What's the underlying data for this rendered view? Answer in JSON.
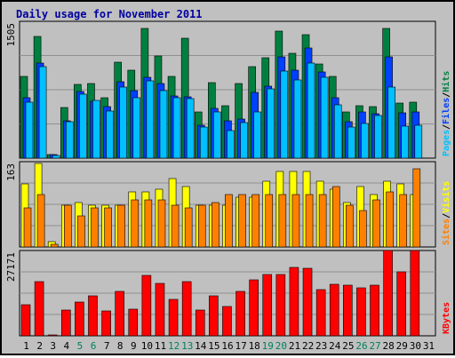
{
  "title": "Daily usage for November 2011",
  "colors": {
    "background": "#c0c0c0",
    "hits": "#008040",
    "files": "#0040ff",
    "pages": "#00c0ff",
    "visits": "#ffff00",
    "sites": "#ff8000",
    "kbytes": "#ff0000",
    "weekend_label": "#00805c",
    "weekday_label": "#000000"
  },
  "chart_data": [
    {
      "type": "bar",
      "panel": "top",
      "max_label": "1505",
      "ylim": [
        0,
        1505
      ],
      "categories": [
        "1",
        "2",
        "3",
        "4",
        "5",
        "6",
        "7",
        "8",
        "9",
        "10",
        "11",
        "12",
        "13",
        "14",
        "15",
        "16",
        "17",
        "18",
        "19",
        "20",
        "21",
        "22",
        "23",
        "24",
        "25",
        "26",
        "27",
        "28",
        "29",
        "30",
        "31"
      ],
      "series": [
        {
          "name": "Hits",
          "values": [
            900,
            1335,
            40,
            560,
            815,
            825,
            660,
            1060,
            970,
            1425,
            1120,
            900,
            1315,
            510,
            835,
            580,
            820,
            1005,
            1105,
            1400,
            1155,
            1360,
            1040,
            895,
            505,
            575,
            565,
            1425,
            610,
            615,
            0
          ]
        },
        {
          "name": "Files",
          "values": [
            660,
            1050,
            40,
            410,
            730,
            630,
            570,
            840,
            740,
            890,
            820,
            685,
            670,
            360,
            550,
            410,
            430,
            720,
            795,
            1110,
            970,
            1210,
            945,
            660,
            405,
            510,
            490,
            1115,
            500,
            505,
            0
          ]
        },
        {
          "name": "Pages",
          "values": [
            615,
            1005,
            30,
            400,
            705,
            640,
            520,
            780,
            660,
            855,
            745,
            660,
            650,
            345,
            510,
            305,
            390,
            510,
            760,
            955,
            860,
            1050,
            890,
            590,
            340,
            380,
            465,
            780,
            355,
            360,
            0
          ]
        }
      ],
      "legend": [
        "Hits",
        "Files",
        "Pages"
      ]
    },
    {
      "type": "bar",
      "panel": "middle",
      "max_label": "163",
      "ylim": [
        0,
        163
      ],
      "categories": [
        "1",
        "2",
        "3",
        "4",
        "5",
        "6",
        "7",
        "8",
        "9",
        "10",
        "11",
        "12",
        "13",
        "14",
        "15",
        "16",
        "17",
        "18",
        "19",
        "20",
        "21",
        "22",
        "23",
        "24",
        "25",
        "26",
        "27",
        "28",
        "29",
        "30",
        "31"
      ],
      "series": [
        {
          "name": "Visits",
          "values": [
            120,
            160,
            10,
            80,
            85,
            80,
            80,
            80,
            105,
            105,
            110,
            130,
            115,
            80,
            80,
            80,
            95,
            95,
            125,
            145,
            145,
            145,
            125,
            110,
            85,
            115,
            100,
            125,
            120,
            100,
            0
          ]
        },
        {
          "name": "Sites",
          "values": [
            75,
            100,
            5,
            80,
            60,
            75,
            75,
            80,
            90,
            90,
            90,
            80,
            75,
            80,
            85,
            100,
            100,
            100,
            100,
            100,
            100,
            100,
            100,
            115,
            80,
            70,
            90,
            105,
            100,
            150,
            0
          ]
        }
      ],
      "legend": [
        "Visits",
        "Sites"
      ]
    },
    {
      "type": "bar",
      "panel": "bottom",
      "max_label": "27171",
      "ylim": [
        0,
        27171
      ],
      "categories": [
        "1",
        "2",
        "3",
        "4",
        "5",
        "6",
        "7",
        "8",
        "9",
        "10",
        "11",
        "12",
        "13",
        "14",
        "15",
        "16",
        "17",
        "18",
        "19",
        "20",
        "21",
        "22",
        "23",
        "24",
        "25",
        "26",
        "27",
        "28",
        "29",
        "30",
        "31"
      ],
      "series": [
        {
          "name": "KBytes",
          "values": [
            9800,
            17400,
            400,
            8200,
            10800,
            12600,
            7900,
            14200,
            8600,
            19200,
            16800,
            11600,
            17200,
            8200,
            12800,
            9400,
            14200,
            17800,
            19600,
            19600,
            21800,
            21600,
            14800,
            16400,
            16000,
            15400,
            16000,
            27200,
            20400,
            27200,
            0
          ]
        }
      ],
      "legend": [
        "KBytes"
      ]
    }
  ],
  "x_labels": [
    {
      "text": "1",
      "weekend": false
    },
    {
      "text": "2",
      "weekend": false
    },
    {
      "text": "3",
      "weekend": false
    },
    {
      "text": "4",
      "weekend": false
    },
    {
      "text": "5",
      "weekend": true
    },
    {
      "text": "6",
      "weekend": true
    },
    {
      "text": "7",
      "weekend": false
    },
    {
      "text": "8",
      "weekend": false
    },
    {
      "text": "9",
      "weekend": false
    },
    {
      "text": "10",
      "weekend": false
    },
    {
      "text": "11",
      "weekend": false
    },
    {
      "text": "12",
      "weekend": true
    },
    {
      "text": "13",
      "weekend": true
    },
    {
      "text": "14",
      "weekend": false
    },
    {
      "text": "15",
      "weekend": false
    },
    {
      "text": "16",
      "weekend": false
    },
    {
      "text": "17",
      "weekend": false
    },
    {
      "text": "18",
      "weekend": false
    },
    {
      "text": "19",
      "weekend": true
    },
    {
      "text": "20",
      "weekend": true
    },
    {
      "text": "21",
      "weekend": false
    },
    {
      "text": "22",
      "weekend": false
    },
    {
      "text": "23",
      "weekend": false
    },
    {
      "text": "24",
      "weekend": false
    },
    {
      "text": "25",
      "weekend": false
    },
    {
      "text": "26",
      "weekend": true
    },
    {
      "text": "27",
      "weekend": true
    },
    {
      "text": "28",
      "weekend": false
    },
    {
      "text": "29",
      "weekend": false
    },
    {
      "text": "30",
      "weekend": false
    },
    {
      "text": "31",
      "weekend": false
    }
  ],
  "right_labels": {
    "top": [
      "Pages",
      "/",
      "Files",
      "/",
      "Hits"
    ],
    "middle": [
      "Sites",
      "/",
      "Visits"
    ],
    "bottom": [
      "KBytes"
    ]
  }
}
